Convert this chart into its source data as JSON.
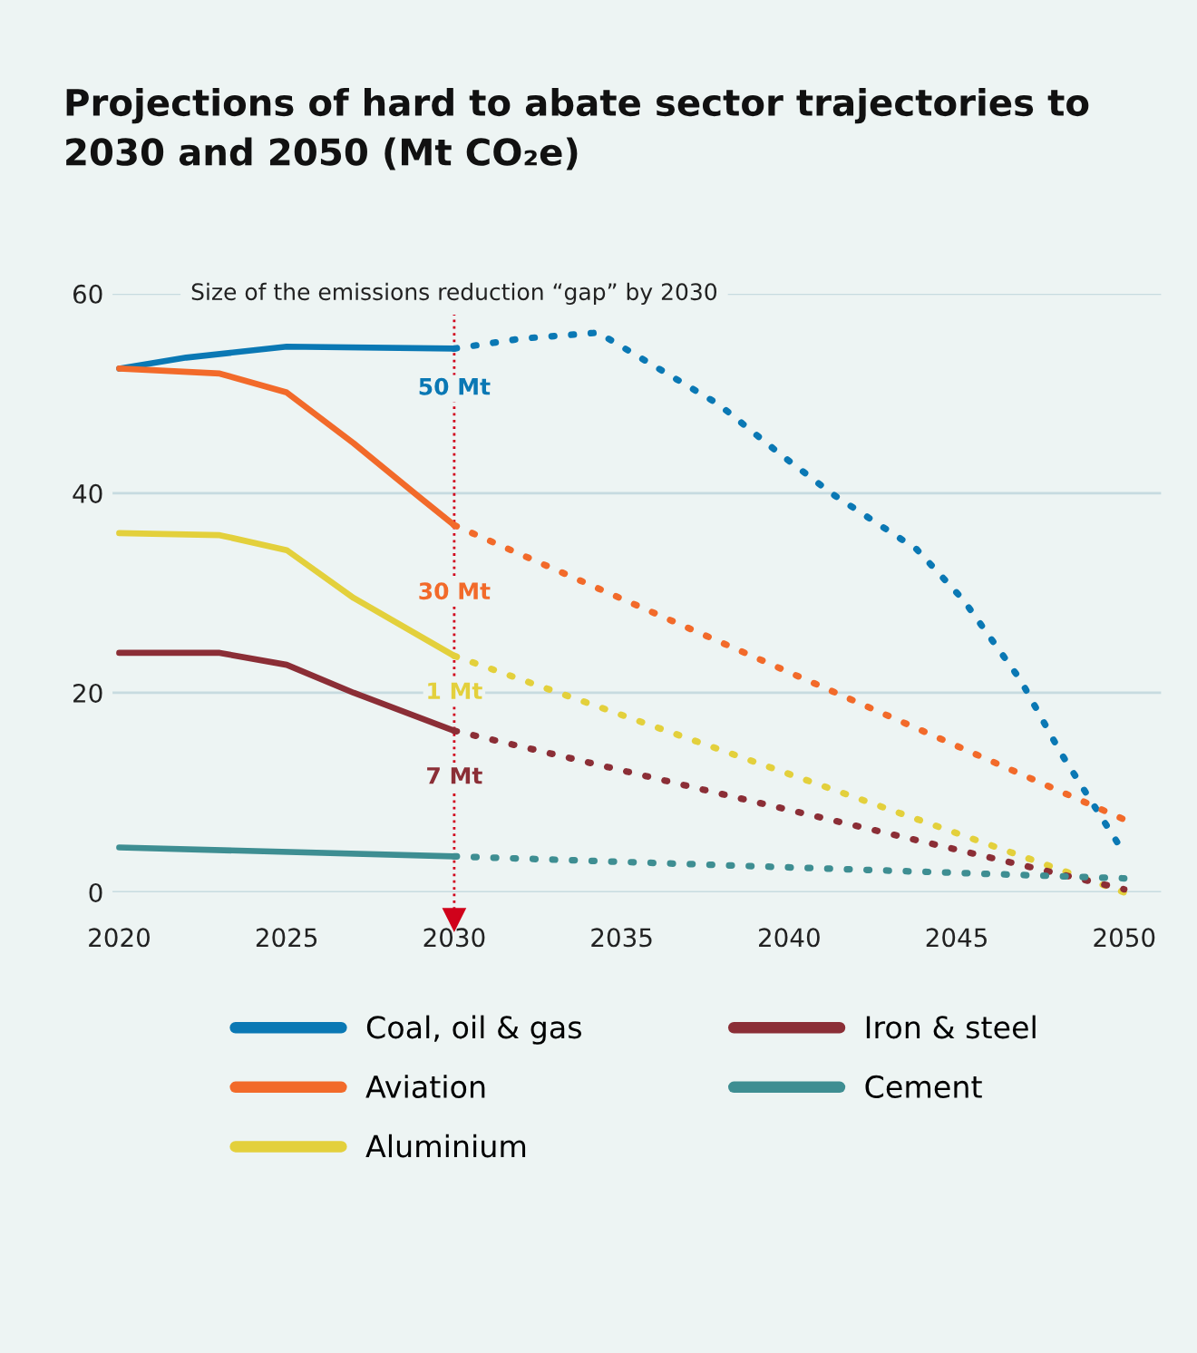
{
  "chart_data": {
    "type": "line",
    "title": "Projections of hard to abate sector trajectories to\n2030 and 2050 (Mt CO₂e)",
    "xlim": [
      2019.8,
      2051.1
    ],
    "ylim": [
      0,
      60
    ],
    "xticks": [
      2020,
      2025,
      2030,
      2035,
      2040,
      2045,
      2050
    ],
    "yticks": [
      0,
      20,
      40,
      60
    ],
    "grid": "y",
    "legend": "bottom",
    "marker": "none",
    "series": [
      {
        "name": "Coal, oil & gas",
        "color": "#0a78b4",
        "line_style": "solid",
        "x": [
          2020,
          2022,
          2025,
          2030
        ],
        "values": [
          52.5,
          53.6,
          54.7,
          54.5
        ]
      },
      {
        "name": "Aviation",
        "color": "#f26a2a",
        "line_style": "solid",
        "x": [
          2020,
          2023,
          2025,
          2027,
          2029,
          2030
        ],
        "values": [
          52.5,
          52,
          50.1,
          45,
          39.5,
          36.8
        ]
      },
      {
        "name": "Aluminium",
        "color": "#e3d03c",
        "line_style": "solid",
        "x": [
          2020,
          2023,
          2025,
          2027,
          2030
        ],
        "values": [
          36,
          35.8,
          34.3,
          29.5,
          23.7
        ]
      },
      {
        "name": "Iron & steel",
        "color": "#8b2e36",
        "line_style": "solid",
        "x": [
          2020,
          2023,
          2025,
          2027,
          2030
        ],
        "values": [
          24,
          24,
          22.8,
          20,
          16.2
        ]
      },
      {
        "name": "Cement",
        "color": "#3e8e92",
        "line_style": "solid",
        "x": [
          2020,
          2030
        ],
        "values": [
          4.5,
          3.6
        ]
      },
      {
        "color": "#0a78b4",
        "line_style": "dotted",
        "x": [
          2030,
          2032,
          2034.3,
          2037.9,
          2039.7,
          2041.3,
          2043.8,
          2045.2,
          2046.9,
          2048.1,
          2049.85
        ],
        "values": [
          54.5,
          55.5,
          56.1,
          48.9,
          44,
          39.9,
          34.4,
          29.3,
          21.3,
          14,
          4.7
        ]
      },
      {
        "color": "#f26a2a",
        "line_style": "dotted",
        "x": [
          2030,
          2050
        ],
        "values": [
          36.8,
          7.3
        ]
      },
      {
        "color": "#e3d03c",
        "line_style": "dotted",
        "x": [
          2030,
          2050
        ],
        "values": [
          23.7,
          0
        ]
      },
      {
        "color": "#8b2e36",
        "line_style": "dotted",
        "x": [
          2030,
          2050
        ],
        "values": [
          16.2,
          0.3
        ]
      },
      {
        "color": "#3e8e92",
        "line_style": "dotted",
        "x": [
          2030,
          2050
        ],
        "values": [
          3.6,
          1.4
        ]
      }
    ],
    "ref_lines": [
      {
        "axis": "x",
        "value": 2030,
        "label": "Size of the emissions reduction “gap” by 2030",
        "color": "#d0021b",
        "line_style": "dotted"
      }
    ],
    "annotations": [
      {
        "text": "50 Mt",
        "y": 50.5
      },
      {
        "text": "30 Mt",
        "y": 30
      },
      {
        "text": "1 Mt",
        "y": 20
      },
      {
        "text": "7 Mt",
        "y": 11.5
      }
    ]
  }
}
